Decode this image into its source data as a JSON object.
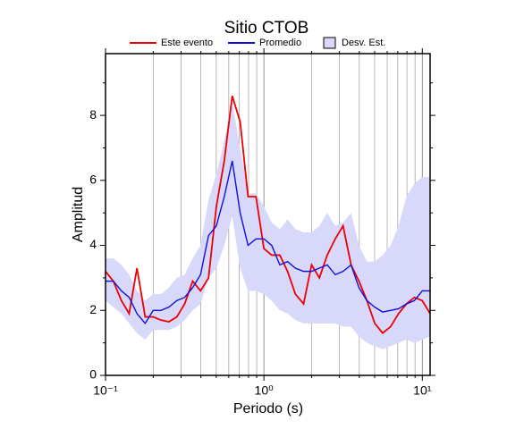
{
  "chart_data": {
    "type": "line",
    "title": "Sitio CTOB",
    "xlabel": "Periodo (s)",
    "ylabel": "Amplitud",
    "xscale": "log",
    "x": [
      0.1,
      0.112,
      0.126,
      0.141,
      0.158,
      0.178,
      0.2,
      0.224,
      0.251,
      0.282,
      0.316,
      0.355,
      0.398,
      0.447,
      0.501,
      0.562,
      0.631,
      0.708,
      0.794,
      0.891,
      1,
      1.12,
      1.26,
      1.41,
      1.58,
      1.78,
      2,
      2.24,
      2.51,
      2.82,
      3.16,
      3.55,
      3.98,
      4.47,
      5.01,
      5.62,
      6.31,
      7.08,
      7.94,
      8.91,
      10,
      11.2
    ],
    "band": {
      "name": "Desv. Est.",
      "color": "#d8d8fa",
      "lower": [
        2.3,
        2.1,
        1.9,
        1.6,
        1.3,
        1.1,
        1.4,
        1.4,
        1.4,
        1.5,
        1.7,
        2.0,
        2.2,
        3.0,
        3.3,
        4.0,
        4.9,
        3.3,
        2.6,
        2.6,
        2.5,
        2.3,
        2.0,
        1.9,
        1.7,
        1.6,
        1.6,
        1.6,
        1.6,
        1.6,
        1.5,
        1.5,
        1.2,
        1.0,
        0.9,
        0.8,
        0.9,
        1.0,
        1.1,
        1.0,
        1.1,
        1.2
      ],
      "upper": [
        3.6,
        3.6,
        3.4,
        3.1,
        2.6,
        2.3,
        2.5,
        2.5,
        2.7,
        3.0,
        3.1,
        3.6,
        4.0,
        5.4,
        6.2,
        7.2,
        8.4,
        7.0,
        5.6,
        5.6,
        5.2,
        4.7,
        4.5,
        4.8,
        4.5,
        4.4,
        4.4,
        4.6,
        5.0,
        4.6,
        4.7,
        5.0,
        4.0,
        3.5,
        3.5,
        3.7,
        4.0,
        4.6,
        5.5,
        5.9,
        6.1,
        6.1
      ]
    },
    "series": [
      {
        "name": "Este evento",
        "color": "#ee0000",
        "values": [
          3.2,
          2.9,
          2.3,
          1.9,
          3.3,
          1.8,
          1.8,
          1.7,
          1.65,
          1.8,
          2.2,
          2.9,
          2.6,
          3.0,
          5.2,
          6.6,
          8.6,
          7.8,
          5.5,
          5.5,
          3.9,
          3.7,
          3.7,
          3.2,
          2.5,
          2.2,
          3.4,
          3.0,
          3.7,
          4.2,
          4.6,
          3.4,
          2.9,
          2.3,
          1.6,
          1.3,
          1.5,
          1.9,
          2.2,
          2.4,
          2.3,
          1.9
        ]
      },
      {
        "name": "Promedio",
        "color": "#1010dd",
        "values": [
          2.9,
          2.9,
          2.6,
          2.4,
          1.9,
          1.6,
          2.0,
          2.0,
          2.1,
          2.3,
          2.4,
          2.7,
          3.1,
          4.3,
          4.6,
          5.5,
          6.6,
          5.0,
          4.0,
          4.2,
          4.2,
          4.0,
          3.4,
          3.5,
          3.3,
          3.2,
          3.2,
          3.3,
          3.4,
          3.1,
          3.2,
          3.4,
          2.7,
          2.3,
          2.1,
          1.95,
          2.0,
          2.05,
          2.2,
          2.3,
          2.6,
          2.6
        ]
      }
    ],
    "xlim": [
      0.1,
      11.2
    ],
    "xticks": [
      {
        "value": 0.1,
        "label": "10⁻¹"
      },
      {
        "value": 1,
        "label": "10⁰"
      },
      {
        "value": 10,
        "label": "10¹"
      }
    ],
    "xminor": [
      0.2,
      0.3,
      0.4,
      0.5,
      0.6,
      0.7,
      0.8,
      0.9,
      2,
      3,
      4,
      5,
      6,
      7,
      8,
      9
    ],
    "ylim": [
      0,
      9.9
    ],
    "yticks": [
      0,
      2,
      4,
      6,
      8
    ],
    "yminor": [
      1,
      3,
      5,
      7,
      9
    ],
    "grid": true
  }
}
